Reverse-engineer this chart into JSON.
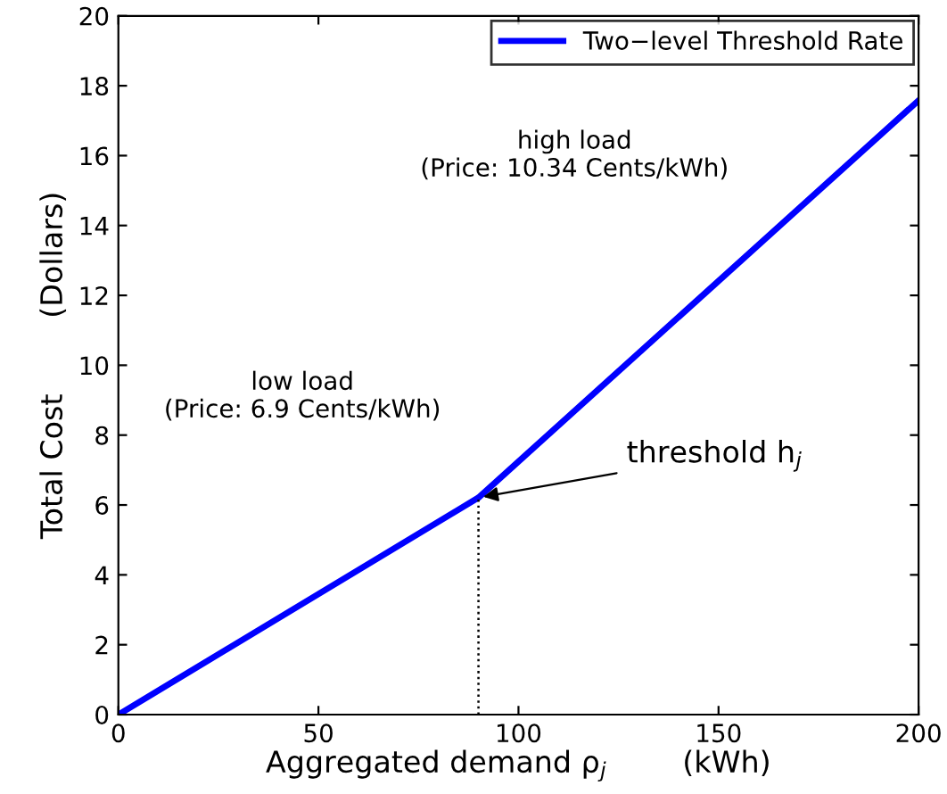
{
  "chart_data": {
    "type": "line",
    "xlabel": "Aggregated demand ρ$_{j}$        (kWh)",
    "ylabel": "Total Cost        (Dollars)",
    "xlim": [
      0,
      200
    ],
    "ylim": [
      0,
      20
    ],
    "xticks": [
      0,
      50,
      100,
      150,
      200
    ],
    "yticks": [
      0,
      2,
      4,
      6,
      8,
      10,
      12,
      14,
      16,
      18,
      20
    ],
    "series": [
      {
        "name": "Two−level Threshold Rate",
        "color": "#0000ff",
        "x": [
          0,
          90,
          200
        ],
        "values": [
          0,
          6.21,
          17.58
        ],
        "line_style": "solid"
      },
      {
        "color": "#000000",
        "x": [
          90,
          90
        ],
        "values": [
          0,
          6.21
        ],
        "line_style": "dotted"
      }
    ],
    "annotations": [
      "low load\n(Price: 6.9 Cents/kWh)",
      "high load\n(Price: 10.34 Cents/kWh)",
      {
        "text": "threshold h$_{j}$",
        "x": 90,
        "y": 6.21
      }
    ],
    "legend": "top right",
    "grid": false
  }
}
